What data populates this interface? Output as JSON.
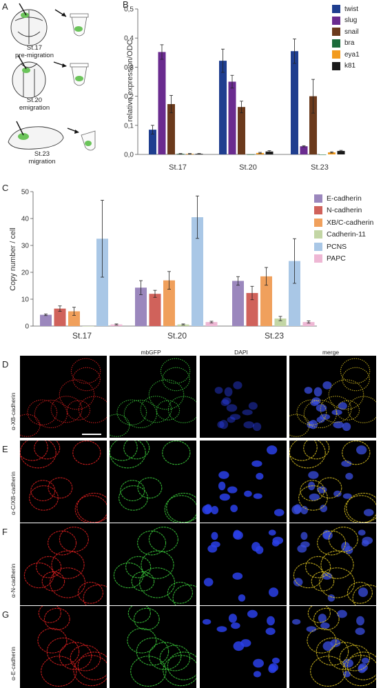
{
  "panels": {
    "A": "A",
    "B": "B",
    "C": "C",
    "D": "D",
    "E": "E",
    "F": "F",
    "G": "G"
  },
  "schematic": {
    "stages": [
      {
        "stage": "St.17",
        "desc": "pre-migration"
      },
      {
        "stage": "St.20",
        "desc": "emigration"
      },
      {
        "stage": "St.23",
        "desc": "migration"
      }
    ]
  },
  "colors": {
    "twist": "#1f3e8f",
    "slug": "#6a2b8f",
    "snail": "#6b3a1c",
    "bra": "#1b6b3a",
    "eya1": "#f29a1c",
    "k81": "#1a1a1a",
    "E-cadherin": "#9b87bd",
    "N-cadherin": "#d0625b",
    "XB/C-cadherin": "#f0a05c",
    "Cadherin-11": "#c3d6a5",
    "PCNS": "#a9c7e6",
    "PAPC": "#eeb7d4"
  },
  "chart_data": [
    {
      "type": "bar",
      "title": "",
      "categories": [
        "St.17",
        "St.20",
        "St.23"
      ],
      "ylabel": "relative expression/ODC",
      "xlabel": "",
      "ylim": [
        0,
        0.5
      ],
      "yticks": [
        "0,0",
        "0,1",
        "0,2",
        "0,3",
        "0,4",
        "0,5"
      ],
      "legend_position": "top-right",
      "series": [
        {
          "name": "twist",
          "values": [
            0.085,
            0.322,
            0.355
          ],
          "errors": [
            0.015,
            0.04,
            0.042
          ]
        },
        {
          "name": "slug",
          "values": [
            0.352,
            0.25,
            0.028
          ],
          "errors": [
            0.025,
            0.022,
            0.002
          ]
        },
        {
          "name": "snail",
          "values": [
            0.173,
            0.163,
            0.2
          ],
          "errors": [
            0.03,
            0.02,
            0.058
          ]
        },
        {
          "name": "bra",
          "values": [
            0.002,
            0.0,
            0.0
          ],
          "errors": [
            0.001,
            0.0,
            0.0
          ]
        },
        {
          "name": "eya1",
          "values": [
            0.002,
            0.005,
            0.007
          ],
          "errors": [
            0.001,
            0.002,
            0.002
          ]
        },
        {
          "name": "k81",
          "values": [
            0.002,
            0.01,
            0.012
          ],
          "errors": [
            0.001,
            0.003,
            0.002
          ]
        }
      ]
    },
    {
      "type": "bar",
      "title": "",
      "categories": [
        "St.17",
        "St.20",
        "St.23"
      ],
      "ylabel": "Copy number / cell",
      "xlabel": "",
      "ylim": [
        0,
        50
      ],
      "yticks": [
        "0",
        "10",
        "20",
        "30",
        "40",
        "50"
      ],
      "legend_position": "top-right",
      "series": [
        {
          "name": "E-cadherin",
          "values": [
            4.2,
            14.3,
            16.8
          ],
          "errors": [
            0.3,
            2.6,
            1.6
          ]
        },
        {
          "name": "N-cadherin",
          "values": [
            6.5,
            12.0,
            12.3
          ],
          "errors": [
            1.0,
            1.3,
            2.5
          ]
        },
        {
          "name": "XB/C-cadherin",
          "values": [
            5.5,
            17.0,
            18.5
          ],
          "errors": [
            1.5,
            3.3,
            3.3
          ]
        },
        {
          "name": "Cadherin-11",
          "values": [
            0.0,
            0.6,
            2.8
          ],
          "errors": [
            0.0,
            0.2,
            0.8
          ]
        },
        {
          "name": "PCNS",
          "values": [
            32.5,
            40.5,
            24.2
          ],
          "errors": [
            14.3,
            7.9,
            8.3
          ]
        },
        {
          "name": "PAPC",
          "values": [
            0.6,
            1.5,
            1.5
          ],
          "errors": [
            0.2,
            0.3,
            0.4
          ]
        }
      ]
    }
  ],
  "micrographs": {
    "column_headers": [
      "",
      "mbGFP",
      "DAPI",
      "merge"
    ],
    "rows": [
      {
        "panel": "D",
        "label": "α-XB-cadherin"
      },
      {
        "panel": "E",
        "label": "α-C/XB-cadherin"
      },
      {
        "panel": "F",
        "label": "α-N-cadherin"
      },
      {
        "panel": "G",
        "label": "α-E-cadherin"
      }
    ]
  }
}
